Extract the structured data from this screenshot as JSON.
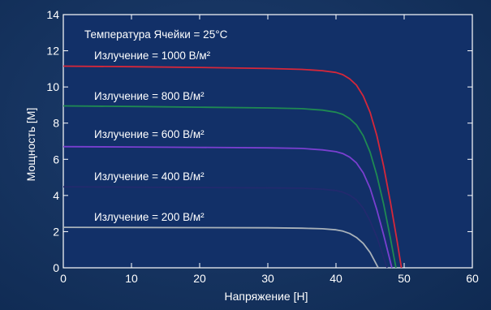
{
  "chart_data": {
    "type": "line",
    "xlabel": "Напряжение [Н]",
    "ylabel": "Мощность [М]",
    "xlim": [
      0,
      60
    ],
    "ylim": [
      0,
      14
    ],
    "xticks": [
      "0",
      "10",
      "20",
      "30",
      "40",
      "50",
      "60"
    ],
    "yticks": [
      "0",
      "2",
      "4",
      "6",
      "8",
      "10",
      "12",
      "14"
    ],
    "grid": false,
    "annotation": "Температура Ячейки = 25°C",
    "series": [
      {
        "name": "Излучение = 1000 В/м²",
        "color": "#d6273a",
        "x": [
          0,
          10,
          20,
          30,
          35,
          38,
          40,
          41,
          42,
          43,
          44,
          45,
          46,
          47,
          48,
          49,
          49.6
        ],
        "y": [
          11.15,
          11.12,
          11.08,
          11.02,
          10.97,
          10.9,
          10.8,
          10.68,
          10.45,
          10.1,
          9.5,
          8.6,
          7.3,
          5.6,
          3.6,
          1.4,
          0
        ]
      },
      {
        "name": "Излучение = 800 В/м²",
        "color": "#1f8a52",
        "x": [
          0,
          10,
          20,
          30,
          35,
          38,
          40,
          41,
          42,
          43,
          44,
          45,
          46,
          47,
          48,
          48.8
        ],
        "y": [
          8.95,
          8.92,
          8.88,
          8.84,
          8.8,
          8.72,
          8.6,
          8.48,
          8.25,
          7.9,
          7.3,
          6.4,
          5.1,
          3.5,
          1.6,
          0
        ]
      },
      {
        "name": "Излучение = 600 В/м²",
        "color": "#7a3fd0",
        "x": [
          0,
          10,
          20,
          30,
          35,
          38,
          40,
          41,
          42,
          43,
          44,
          45,
          46,
          47,
          48.2
        ],
        "y": [
          6.7,
          6.68,
          6.66,
          6.63,
          6.6,
          6.52,
          6.42,
          6.32,
          6.12,
          5.8,
          5.25,
          4.4,
          3.2,
          1.8,
          0
        ]
      },
      {
        "name": "Излучение = 400 В/м²",
        "color": "#222a6e",
        "x": [
          0,
          10,
          20,
          30,
          35,
          38,
          40,
          41,
          42,
          43,
          44,
          45,
          46,
          47.5
        ],
        "y": [
          4.48,
          4.46,
          4.44,
          4.42,
          4.4,
          4.35,
          4.27,
          4.18,
          4.02,
          3.75,
          3.3,
          2.6,
          1.7,
          0
        ]
      },
      {
        "name": "Излучение = 200 В/м²",
        "color": "#a9b2ba",
        "x": [
          0,
          10,
          20,
          30,
          35,
          38,
          40,
          41,
          42,
          43,
          44,
          45,
          46.2
        ],
        "y": [
          2.24,
          2.23,
          2.22,
          2.21,
          2.19,
          2.16,
          2.1,
          2.03,
          1.9,
          1.68,
          1.35,
          0.85,
          0
        ]
      }
    ]
  }
}
